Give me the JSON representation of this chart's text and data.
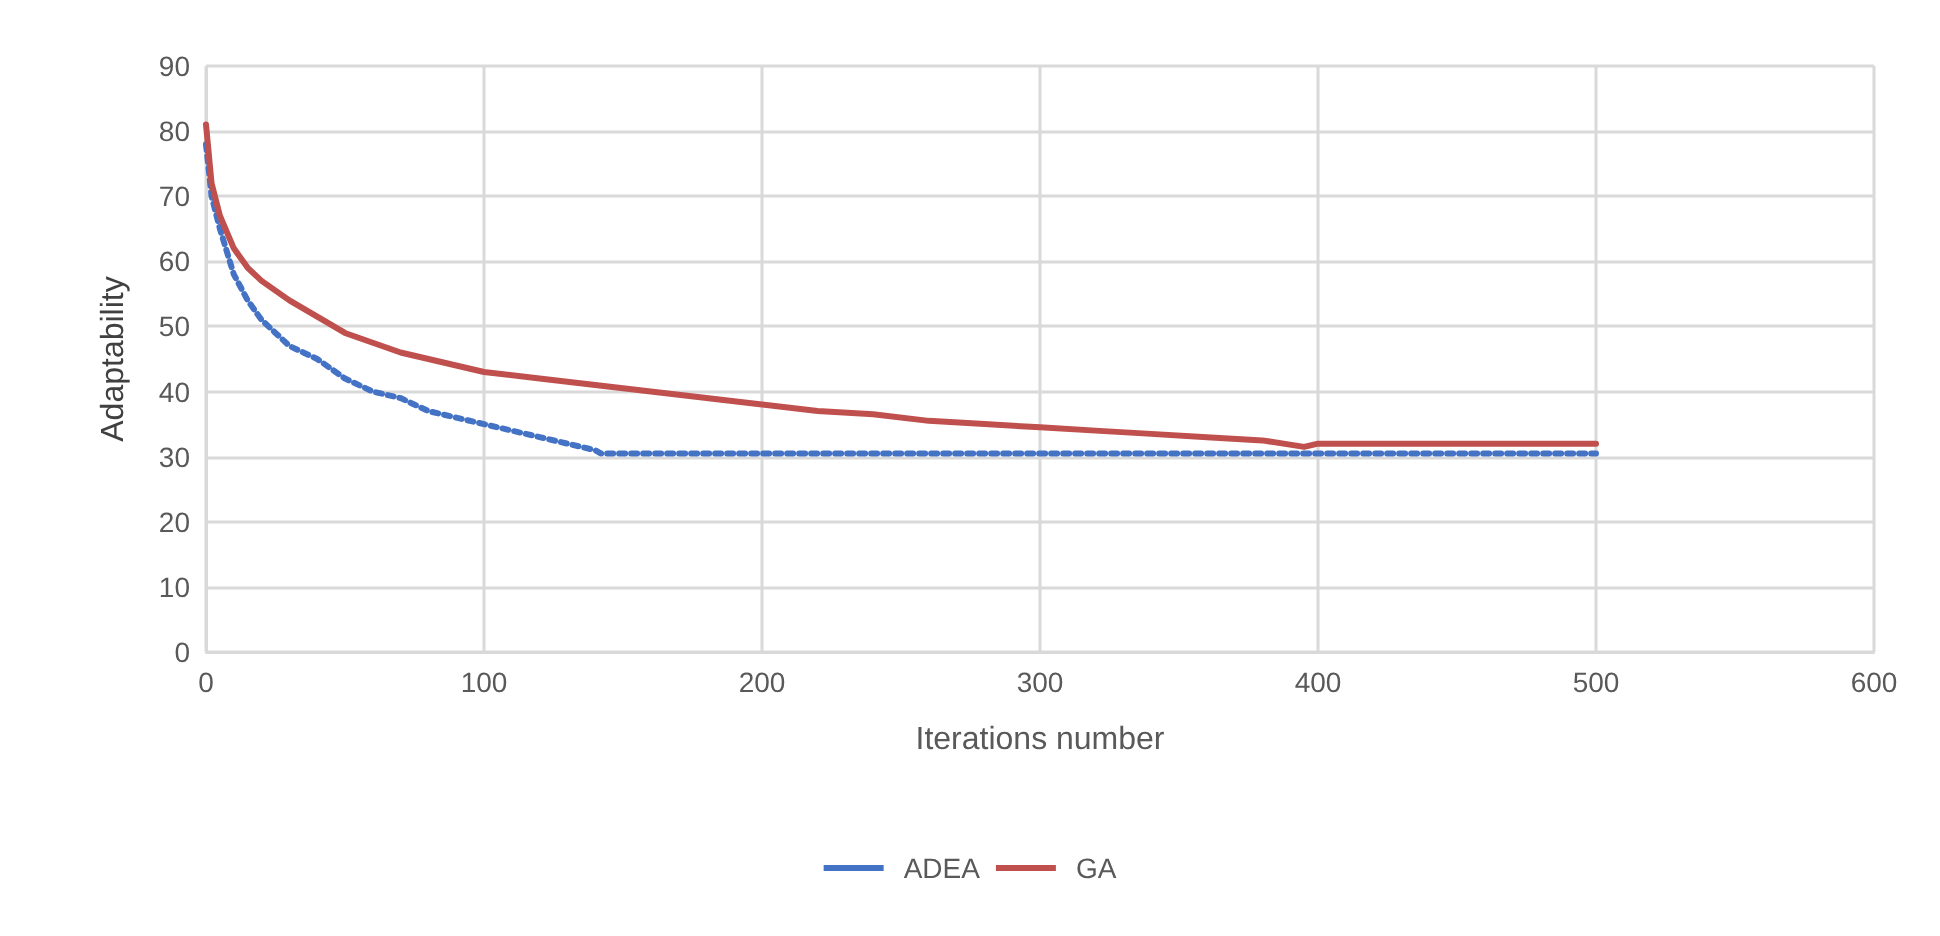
{
  "chart_data": {
    "type": "line",
    "xlabel": "Iterations number",
    "ylabel": "Adaptability",
    "xlim": [
      0,
      600
    ],
    "xticks": [
      0,
      100,
      200,
      300,
      400,
      500,
      600
    ],
    "ylim": [
      0,
      90
    ],
    "yticks": [
      0,
      10,
      20,
      30,
      40,
      50,
      60,
      70,
      80,
      90
    ],
    "grid": true,
    "legend": "bottom",
    "marker": "none",
    "series": [
      {
        "name": "ADEA",
        "color": "#4472c4",
        "line_style": "dotted",
        "x": [
          0,
          2,
          5,
          10,
          15,
          20,
          25,
          30,
          40,
          50,
          60,
          70,
          80,
          90,
          100,
          110,
          120,
          130,
          140,
          142,
          200,
          300,
          400,
          500
        ],
        "values": [
          78,
          70,
          65,
          58,
          54,
          51,
          49,
          47,
          45,
          42,
          40,
          39,
          37,
          36,
          35,
          34,
          33,
          32,
          31,
          30.5,
          30.5,
          30.5,
          30.5,
          30.5
        ]
      },
      {
        "name": "GA",
        "color": "#c0504d",
        "line_style": "solid",
        "x": [
          0,
          2,
          5,
          10,
          15,
          20,
          30,
          40,
          50,
          60,
          70,
          80,
          90,
          100,
          120,
          140,
          160,
          180,
          200,
          220,
          240,
          260,
          280,
          300,
          320,
          340,
          360,
          380,
          395,
          400,
          500
        ],
        "values": [
          81,
          72,
          67,
          62,
          59,
          57,
          54,
          51.5,
          49,
          47.5,
          46,
          45,
          44,
          43,
          42,
          41,
          40,
          39,
          38,
          37,
          36.5,
          35.5,
          35,
          34.5,
          34,
          33.5,
          33,
          32.5,
          31.5,
          32,
          32
        ]
      }
    ]
  }
}
